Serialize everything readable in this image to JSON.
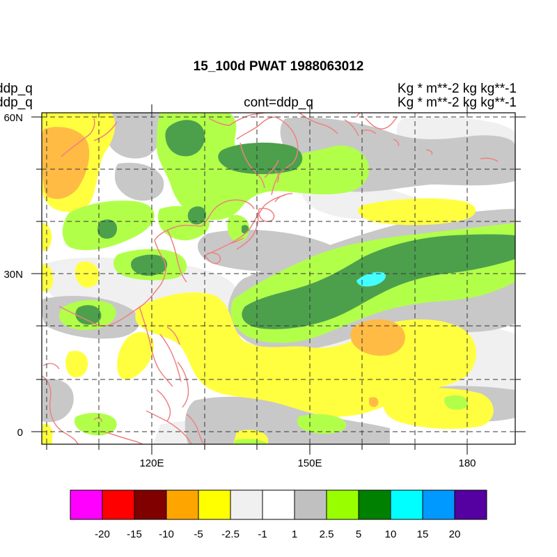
{
  "title": "15_100d PWAT  1988063012",
  "left_labels": [
    "ddp_q",
    "ddp_q"
  ],
  "center_label": "cont=ddp_q",
  "right_labels": [
    "Kg  * m**-2 kg kg**-1",
    "Kg  * m**-2 kg kg**-1"
  ],
  "lat_ticks": [
    "60N",
    "30N",
    "0"
  ],
  "lon_ticks": [
    "120E",
    "150E",
    "180"
  ],
  "colorbar": {
    "colors": [
      "#ff00ff",
      "#ff0000",
      "#800000",
      "#ffa500",
      "#ffff00",
      "#f0f0f0",
      "#ffffff",
      "#c0c0c0",
      "#99ff00",
      "#008000",
      "#00ffff",
      "#0099ff",
      "#5500a0"
    ],
    "labels": [
      "-20",
      "-15",
      "-10",
      "-5",
      "-2.5",
      "-1",
      "1",
      "2.5",
      "5",
      "10",
      "15",
      "20"
    ]
  },
  "palette": {
    "light_gray": "#f0f0f0",
    "gray": "#c8c8c8",
    "yellow": "#ffff40",
    "orange": "#ffbb44",
    "light_green": "#b2ff4a",
    "dark_green": "#4ca04c",
    "cyan": "#44ffff",
    "coast": "#f08080"
  }
}
